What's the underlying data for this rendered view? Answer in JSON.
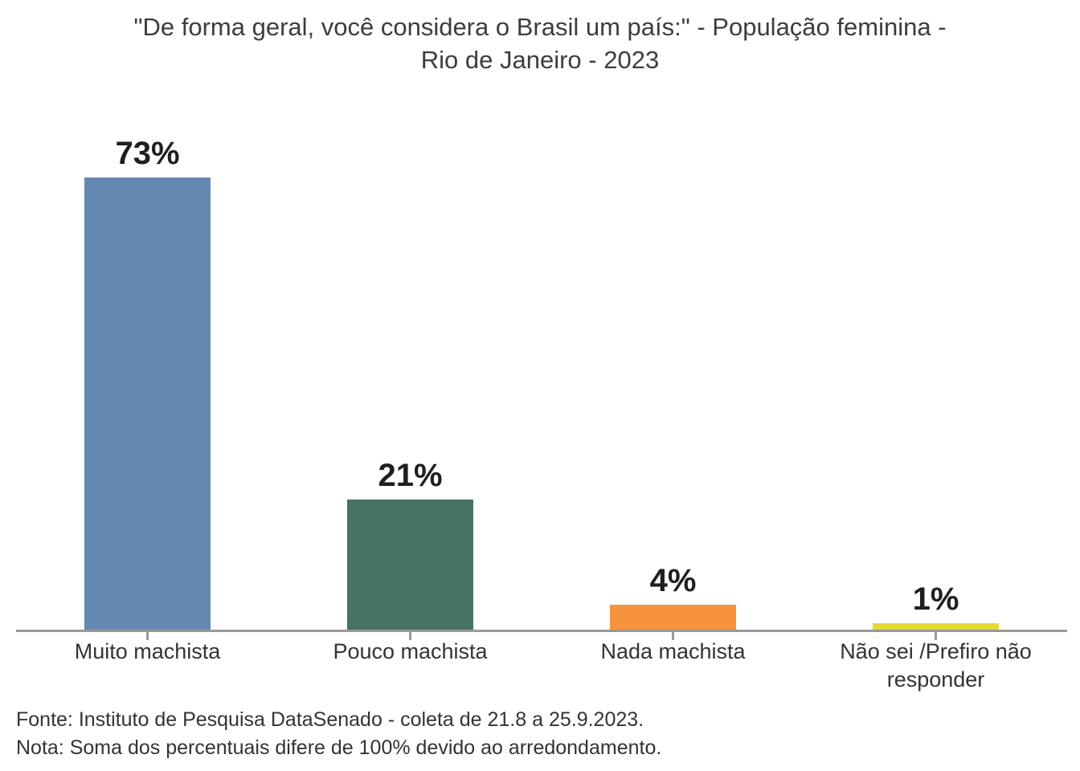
{
  "chart": {
    "title": "\"De forma geral, você considera o Brasil um país:\" - População feminina - Rio de Janeiro - 2023",
    "source_line": "Fonte: Instituto de Pesquisa DataSenado - coleta de 21.8 a 25.9.2023.",
    "note_line": "Nota: Soma dos percentuais difere de 100% devido ao arredondamento."
  },
  "chart_data": {
    "type": "bar",
    "title": "\"De forma geral, você considera o Brasil um país:\" - População feminina - Rio de Janeiro - 2023",
    "categories": [
      "Muito machista",
      "Pouco machista",
      "Nada machista",
      "Não sei /Prefiro não responder"
    ],
    "values": [
      73,
      21,
      4,
      1
    ],
    "value_labels": [
      "73%",
      "21%",
      "4%",
      "1%"
    ],
    "bar_colors": [
      "#6489B2",
      "#467364",
      "#F8933D",
      "#E5D936"
    ],
    "xlabel": "",
    "ylabel": "",
    "ylim": [
      0,
      80
    ],
    "grid": false,
    "legend": false,
    "axis_color": "#999999",
    "annotations": [
      "Fonte: Instituto de Pesquisa DataSenado - coleta de 21.8 a 25.9.2023.",
      "Nota: Soma dos percentuais difere de 100% devido ao arredondamento."
    ]
  }
}
